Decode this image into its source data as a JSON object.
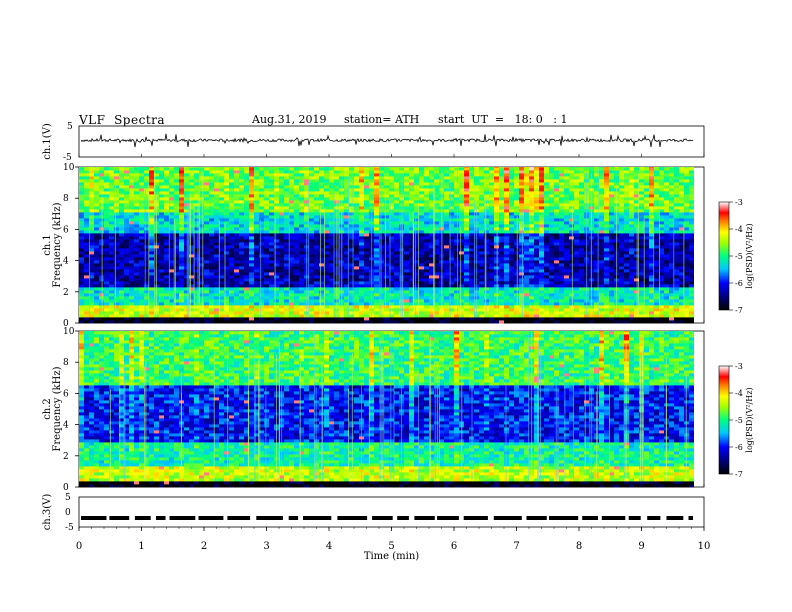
{
  "header": {
    "title": "VLF  Spectra",
    "date": "Aug.31, 2019",
    "station": "station= ATH",
    "start": "start  UT  =   18: 0   : 1"
  },
  "chart_data": [
    {
      "type": "line",
      "panel": "ch1-waveform",
      "ylabel": "ch.1(V)",
      "ylim": [
        -5,
        5
      ],
      "yticks": [
        "5",
        "-5"
      ],
      "xlim": [
        0,
        10
      ],
      "series": [
        {
          "baseline": 0.4,
          "noise": "broadband impulsive spikes",
          "color": "#000000"
        }
      ]
    },
    {
      "type": "heatmap",
      "panel": "ch1-spectrogram",
      "ylabel": "ch.1\nFrequency  (kHz)",
      "ylim": [
        0,
        10
      ],
      "yticks": [
        "0",
        "2",
        "4",
        "6",
        "8",
        "10"
      ],
      "xlim": [
        0,
        9.8
      ],
      "colorbar": {
        "label": "log(PSD)(V²/Hz)",
        "range": [
          -7,
          -3
        ],
        "ticks": [
          "-3",
          "-4",
          "-5",
          "-6",
          "-7"
        ]
      },
      "bands_khz": [
        {
          "range": [
            0,
            0.3
          ],
          "level": -7
        },
        {
          "range": [
            0.3,
            1.0
          ],
          "level": -4.3
        },
        {
          "range": [
            1.0,
            2.3
          ],
          "level": -5.2
        },
        {
          "range": [
            2.3,
            5.6
          ],
          "level": -6.3
        },
        {
          "range": [
            5.6,
            7.0
          ],
          "level": -5.3
        },
        {
          "range": [
            7.0,
            10
          ],
          "level": -4.7
        }
      ]
    },
    {
      "type": "heatmap",
      "panel": "ch2-spectrogram",
      "ylabel": "ch.2\nFrequency  (kHz)",
      "ylim": [
        0,
        10
      ],
      "yticks": [
        "0",
        "2",
        "4",
        "6",
        "8",
        "10"
      ],
      "xlim": [
        0,
        9.8
      ],
      "colorbar": {
        "label": "log(PSD)(V²/Hz)",
        "range": [
          -7,
          -3
        ],
        "ticks": [
          "-3",
          "-4",
          "-5",
          "-6",
          "-7"
        ]
      },
      "bands_khz": [
        {
          "range": [
            0,
            0.3
          ],
          "level": -7
        },
        {
          "range": [
            0.3,
            1.2
          ],
          "level": -4.4
        },
        {
          "range": [
            1.2,
            2.8
          ],
          "level": -5.1
        },
        {
          "range": [
            2.8,
            6.5
          ],
          "level": -6.0
        },
        {
          "range": [
            6.5,
            10
          ],
          "level": -4.9
        }
      ]
    },
    {
      "type": "line",
      "panel": "ch3-waveform",
      "ylabel": "ch.3(V)",
      "ylim": [
        -5,
        5
      ],
      "yticks": [
        "5",
        "0",
        "-5"
      ],
      "xlim": [
        0,
        10
      ],
      "xticks": [
        "0",
        "1",
        "2",
        "3",
        "4",
        "5",
        "6",
        "7",
        "8",
        "9",
        "10"
      ],
      "xlabel": "Time  (min)",
      "series": [
        {
          "baseline": -2,
          "form": "dashed pulse train",
          "color": "#000000"
        }
      ]
    }
  ]
}
